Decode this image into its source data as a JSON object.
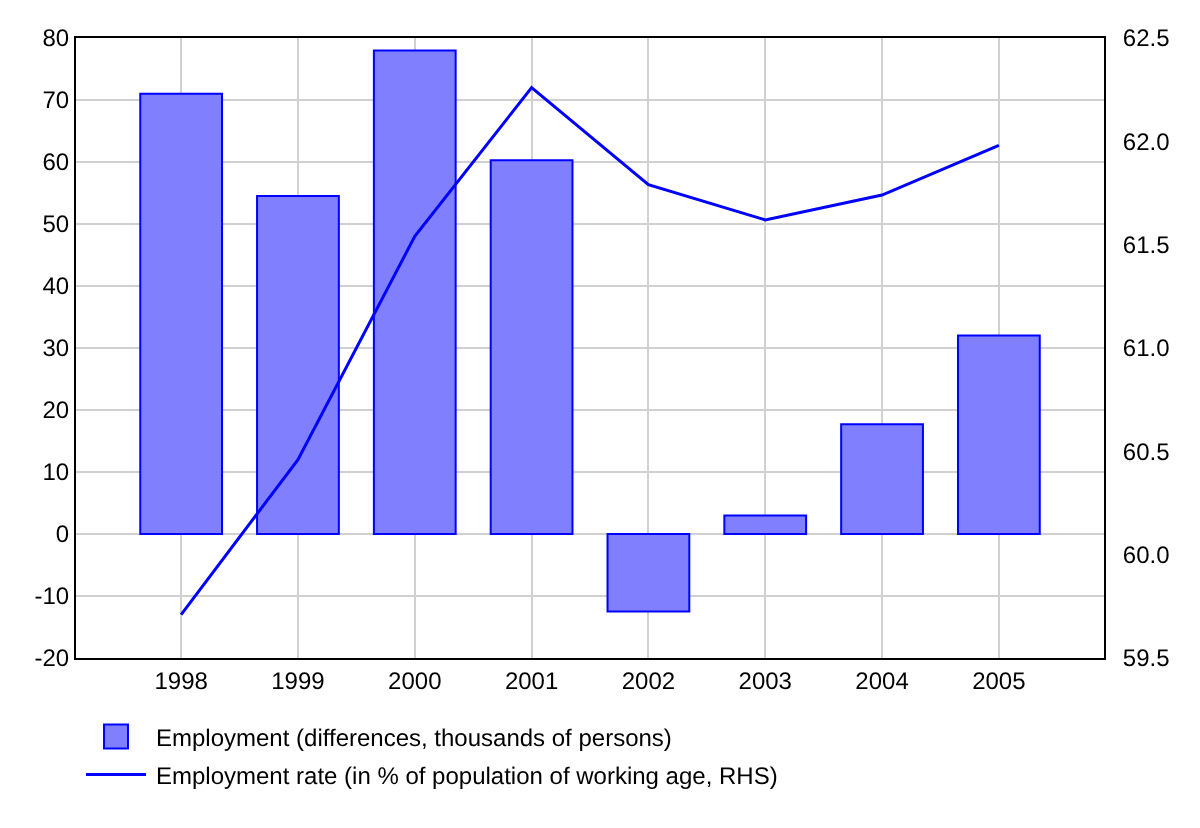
{
  "chart_data": {
    "type": "bar",
    "categories": [
      "1998",
      "1999",
      "2000",
      "2001",
      "2002",
      "2003",
      "2004",
      "2005"
    ],
    "series": [
      {
        "name": "Employment (differences, thousands of persons)",
        "color": "#8080ff",
        "values": [
          71,
          54.5,
          78,
          60.3,
          -12.5,
          3,
          17.7,
          32
        ]
      },
      {
        "name": "Employment rate (in % of population of working age, RHS)",
        "type": "line",
        "axis": "y2",
        "color": "#0000ff",
        "values": [
          59.71,
          60.46,
          61.54,
          62.26,
          61.79,
          61.62,
          61.74,
          61.98
        ]
      }
    ],
    "ylim": [
      -20,
      80
    ],
    "yticks": [
      -20,
      -10,
      0,
      10,
      20,
      30,
      40,
      50,
      60,
      70,
      80
    ],
    "y2lim": [
      59.5,
      62.5
    ],
    "y2ticks": [
      59.5,
      {
        "value": 60,
        "label": "60.0"
      },
      60.5,
      {
        "value": 61,
        "label": "61.0"
      },
      61.5,
      {
        "value": 62,
        "label": "62.0"
      },
      62.5
    ],
    "grid": true,
    "legend": "bottom left",
    "marker": "none",
    "line_style": "solid"
  }
}
